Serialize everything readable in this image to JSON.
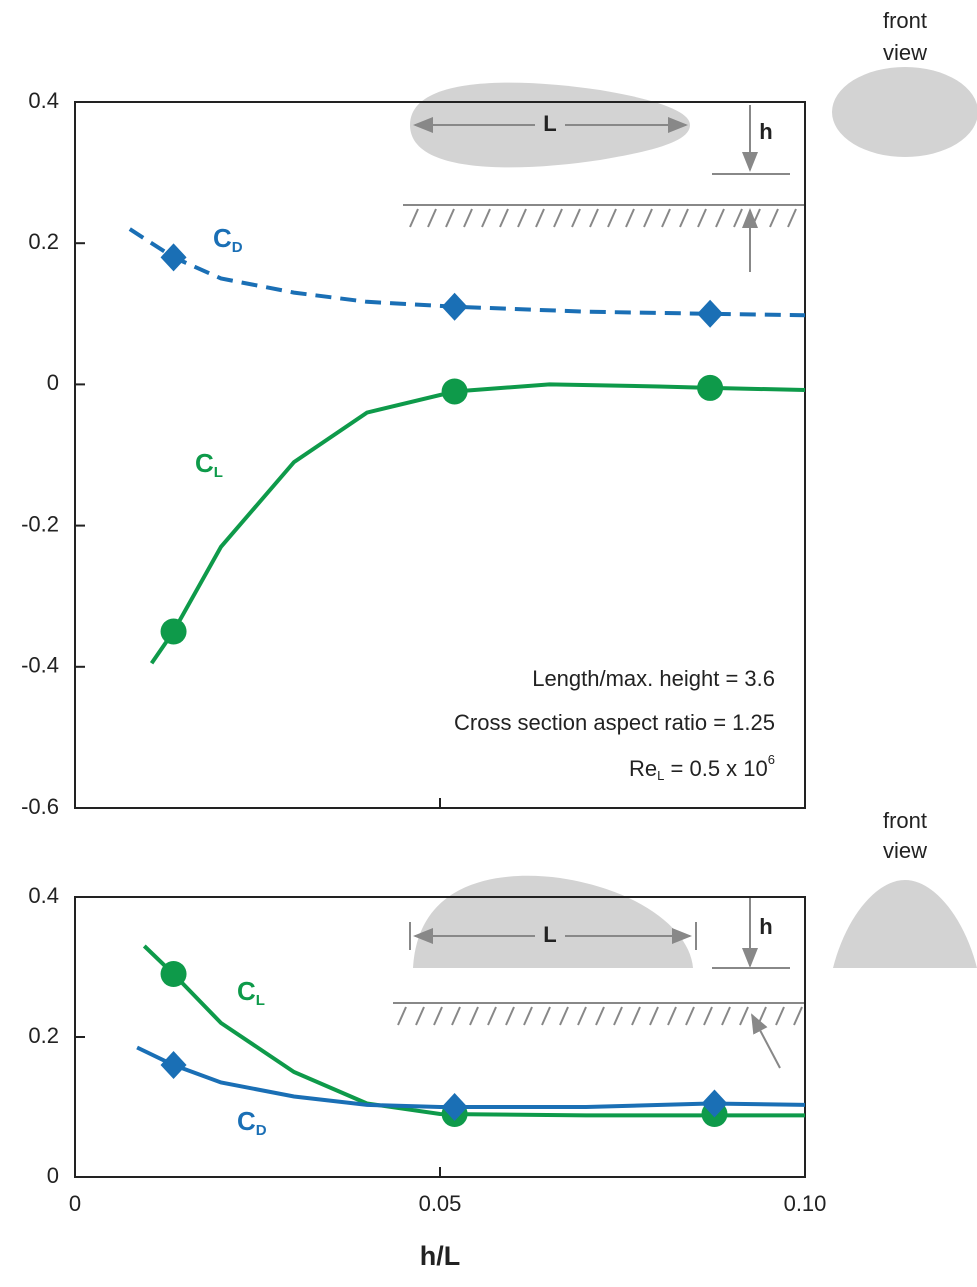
{
  "chart_data": [
    {
      "type": "line",
      "xlim": [
        0,
        0.1
      ],
      "ylim": [
        -0.6,
        0.4
      ],
      "yticks": [
        0.4,
        0.2,
        0,
        -0.2,
        -0.4,
        -0.6
      ],
      "series": [
        {
          "name": "C",
          "name_sub": "D",
          "color": "#1a6fb5",
          "marker": "diamond",
          "dashed": true,
          "x": [
            0.0135,
            0.052,
            0.087
          ],
          "values": [
            0.18,
            0.11,
            0.1
          ],
          "curve_x": [
            0.0075,
            0.0135,
            0.02,
            0.03,
            0.04,
            0.052,
            0.07,
            0.087,
            0.1
          ],
          "curve_y": [
            0.22,
            0.18,
            0.15,
            0.13,
            0.117,
            0.11,
            0.103,
            0.1,
            0.098
          ]
        },
        {
          "name": "C",
          "name_sub": "L",
          "color": "#0e9a4a",
          "marker": "circle",
          "dashed": false,
          "x": [
            0.0135,
            0.052,
            0.087
          ],
          "values": [
            -0.35,
            -0.01,
            -0.005
          ],
          "curve_x": [
            0.0105,
            0.0135,
            0.02,
            0.03,
            0.04,
            0.052,
            0.065,
            0.08,
            0.087,
            0.1
          ],
          "curve_y": [
            -0.395,
            -0.35,
            -0.23,
            -0.11,
            -0.04,
            -0.01,
            0.0,
            -0.003,
            -0.005,
            -0.008
          ]
        }
      ],
      "annotations": [
        "Length/max. height = 3.6",
        "Cross section aspect ratio = 1.25"
      ],
      "reynolds": [
        "Re",
        "L",
        " = 0.5 x 10",
        "6"
      ],
      "diagram": {
        "length": "L",
        "height": "h",
        "front_view": [
          "front",
          "view"
        ]
      }
    },
    {
      "type": "line",
      "xlim": [
        0,
        0.1
      ],
      "ylim": [
        0,
        0.4
      ],
      "yticks": [
        0.4,
        0.2,
        0
      ],
      "xticks": [
        0,
        0.05,
        {
          "value": 0.1,
          "label": "0.10"
        }
      ],
      "xlabel": "h/L",
      "series": [
        {
          "name": "C",
          "name_sub": "L",
          "color": "#0e9a4a",
          "marker": "circle",
          "dashed": false,
          "x": [
            0.0135,
            0.052,
            0.0876
          ],
          "values": [
            0.29,
            0.09,
            0.09
          ],
          "curve_x": [
            0.0095,
            0.0135,
            0.02,
            0.03,
            0.04,
            0.05,
            0.07,
            0.1
          ],
          "curve_y": [
            0.33,
            0.29,
            0.22,
            0.15,
            0.105,
            0.09,
            0.088,
            0.088
          ]
        },
        {
          "name": "C",
          "name_sub": "D",
          "color": "#1a6fb5",
          "marker": "diamond",
          "dashed": false,
          "x": [
            0.0135,
            0.052,
            0.0876
          ],
          "values": [
            0.16,
            0.1,
            0.105
          ],
          "curve_x": [
            0.0085,
            0.0135,
            0.02,
            0.03,
            0.04,
            0.05,
            0.07,
            0.087,
            0.1
          ],
          "curve_y": [
            0.185,
            0.16,
            0.135,
            0.115,
            0.103,
            0.1,
            0.1,
            0.105,
            0.103
          ]
        }
      ],
      "diagram": {
        "length": "L",
        "height": "h",
        "front_view": [
          "front",
          "view"
        ]
      }
    }
  ]
}
